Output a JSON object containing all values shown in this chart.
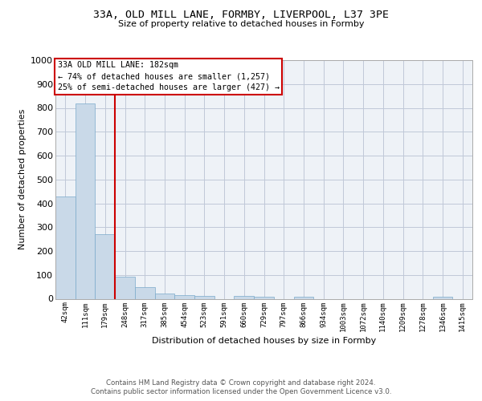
{
  "title1": "33A, OLD MILL LANE, FORMBY, LIVERPOOL, L37 3PE",
  "title2": "Size of property relative to detached houses in Formby",
  "xlabel": "Distribution of detached houses by size in Formby",
  "ylabel": "Number of detached properties",
  "categories": [
    "42sqm",
    "111sqm",
    "179sqm",
    "248sqm",
    "317sqm",
    "385sqm",
    "454sqm",
    "523sqm",
    "591sqm",
    "660sqm",
    "729sqm",
    "797sqm",
    "866sqm",
    "934sqm",
    "1003sqm",
    "1072sqm",
    "1140sqm",
    "1209sqm",
    "1278sqm",
    "1346sqm",
    "1415sqm"
  ],
  "values": [
    430,
    820,
    270,
    93,
    48,
    22,
    15,
    12,
    0,
    12,
    10,
    0,
    8,
    0,
    0,
    0,
    0,
    0,
    0,
    8,
    0
  ],
  "bar_color": "#c9d9e8",
  "bar_edge_color": "#7aaaca",
  "grid_color": "#c0c8d8",
  "annotation_text_line1": "33A OLD MILL LANE: 182sqm",
  "annotation_text_line2": "← 74% of detached houses are smaller (1,257)",
  "annotation_text_line3": "25% of semi-detached houses are larger (427) →",
  "annotation_box_color": "#ffffff",
  "annotation_box_edge_color": "#cc0000",
  "annotation_line_color": "#cc0000",
  "ylim": [
    0,
    1000
  ],
  "yticks": [
    0,
    100,
    200,
    300,
    400,
    500,
    600,
    700,
    800,
    900,
    1000
  ],
  "footer_line1": "Contains HM Land Registry data © Crown copyright and database right 2024.",
  "footer_line2": "Contains public sector information licensed under the Open Government Licence v3.0.",
  "bg_color": "#eef2f7"
}
